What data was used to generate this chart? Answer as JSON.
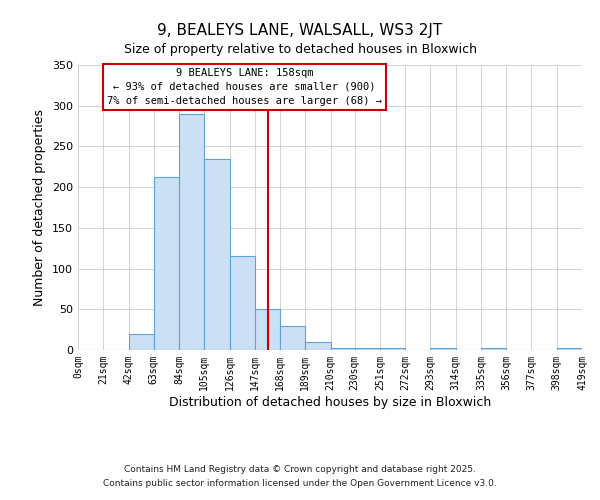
{
  "title": "9, BEALEYS LANE, WALSALL, WS3 2JT",
  "subtitle": "Size of property relative to detached houses in Bloxwich",
  "xlabel": "Distribution of detached houses by size in Bloxwich",
  "ylabel": "Number of detached properties",
  "bar_color": "#cce0f5",
  "bar_edge_color": "#5ba3d9",
  "background_color": "#ffffff",
  "grid_color": "#cccccc",
  "vline_x": 158,
  "vline_color": "#cc0000",
  "bin_edges": [
    0,
    21,
    42,
    63,
    84,
    105,
    126,
    147,
    168,
    189,
    210,
    230,
    251,
    272,
    293,
    314,
    335,
    356,
    377,
    398,
    419
  ],
  "bin_counts": [
    0,
    0,
    20,
    213,
    290,
    235,
    115,
    50,
    30,
    10,
    3,
    3,
    2,
    0,
    2,
    0,
    2,
    0,
    0,
    2
  ],
  "tick_labels": [
    "0sqm",
    "21sqm",
    "42sqm",
    "63sqm",
    "84sqm",
    "105sqm",
    "126sqm",
    "147sqm",
    "168sqm",
    "189sqm",
    "210sqm",
    "230sqm",
    "251sqm",
    "272sqm",
    "293sqm",
    "314sqm",
    "335sqm",
    "356sqm",
    "377sqm",
    "398sqm",
    "419sqm"
  ],
  "annotation_title": "9 BEALEYS LANE: 158sqm",
  "annotation_line1": "← 93% of detached houses are smaller (900)",
  "annotation_line2": "7% of semi-detached houses are larger (68) →",
  "annotation_box_color": "#ffffff",
  "annotation_border_color": "#cc0000",
  "footer1": "Contains HM Land Registry data © Crown copyright and database right 2025.",
  "footer2": "Contains public sector information licensed under the Open Government Licence v3.0.",
  "ylim": [
    0,
    350
  ],
  "xlim": [
    0,
    419
  ],
  "yticks": [
    0,
    50,
    100,
    150,
    200,
    250,
    300,
    350
  ]
}
